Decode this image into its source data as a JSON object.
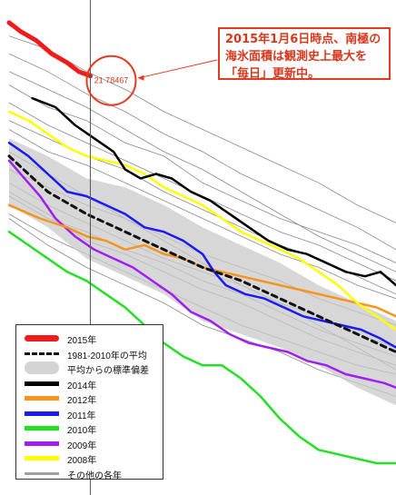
{
  "annotation": {
    "text": "2015年1月6日時点、南極の\n海氷面積は観測史上最大を\n「毎日」更新中。"
  },
  "value_label": "21 78467",
  "legend": [
    {
      "key": "s2015",
      "label": "2015年",
      "style": "solid",
      "color": "#ee1c1c"
    },
    {
      "key": "mean",
      "label": "1981-2010年の平均",
      "style": "dash",
      "color": "#111111"
    },
    {
      "key": "band",
      "label": "平均からの標準偏差",
      "style": "band",
      "color": "#d4d4d4"
    },
    {
      "key": "s2014",
      "label": "2014年",
      "style": "solid",
      "color": "#000000"
    },
    {
      "key": "s2012",
      "label": "2012年",
      "style": "solid",
      "color": "#f7941d"
    },
    {
      "key": "s2011",
      "label": "2011年",
      "style": "solid",
      "color": "#1c1cf0"
    },
    {
      "key": "s2010",
      "label": "2010年",
      "style": "solid",
      "color": "#22e022"
    },
    {
      "key": "s2009",
      "label": "2009年",
      "style": "solid",
      "color": "#a020f0"
    },
    {
      "key": "s2008",
      "label": "2008年",
      "style": "solid",
      "color": "#ffff00"
    },
    {
      "key": "other",
      "label": "その他の各年",
      "style": "solid",
      "color": "#a0a0a0"
    }
  ],
  "chart_data": {
    "type": "line",
    "title": "",
    "xlabel": "",
    "ylabel": "",
    "x_range": [
      0,
      100
    ],
    "y_range": [
      0,
      100
    ],
    "grid": false,
    "legend_position": "bottom-left",
    "marker_x": 21,
    "band": {
      "name": "平均からの標準偏差",
      "upper": [
        [
          0,
          73
        ],
        [
          10,
          69
        ],
        [
          20,
          64
        ],
        [
          30,
          62
        ],
        [
          40,
          58
        ],
        [
          50,
          53
        ],
        [
          60,
          49
        ],
        [
          70,
          45
        ],
        [
          80,
          40
        ],
        [
          90,
          36
        ],
        [
          100,
          32
        ]
      ],
      "lower": [
        [
          0,
          58
        ],
        [
          10,
          53
        ],
        [
          20,
          46
        ],
        [
          30,
          42
        ],
        [
          40,
          38
        ],
        [
          50,
          32
        ],
        [
          60,
          29
        ],
        [
          70,
          26
        ],
        [
          80,
          22
        ],
        [
          90,
          17
        ],
        [
          100,
          13
        ]
      ]
    },
    "series": [
      {
        "name": "2015年",
        "color": "#ee1c1c",
        "width": 5,
        "dash": false,
        "points": [
          [
            0,
            99
          ],
          [
            3,
            97
          ],
          [
            7,
            95
          ],
          [
            11,
            92
          ],
          [
            15,
            90
          ],
          [
            18,
            88
          ],
          [
            21,
            87
          ]
        ]
      },
      {
        "name": "1981-2010年の平均",
        "color": "#111111",
        "width": 3,
        "dash": true,
        "points": [
          [
            0,
            69
          ],
          [
            10,
            61
          ],
          [
            20,
            56
          ],
          [
            30,
            52
          ],
          [
            40,
            48
          ],
          [
            50,
            44
          ],
          [
            60,
            41
          ],
          [
            70,
            37
          ],
          [
            80,
            33
          ],
          [
            90,
            29
          ],
          [
            100,
            25
          ]
        ]
      },
      {
        "name": "2014年",
        "color": "#000000",
        "width": 2.5,
        "dash": false,
        "points": [
          [
            6,
            82
          ],
          [
            12,
            80
          ],
          [
            17,
            76
          ],
          [
            22,
            73
          ],
          [
            27,
            70
          ],
          [
            30,
            66
          ],
          [
            34,
            64
          ],
          [
            38,
            65
          ],
          [
            42,
            64
          ],
          [
            47,
            61
          ],
          [
            52,
            59
          ],
          [
            57,
            56
          ],
          [
            62,
            53
          ],
          [
            67,
            50
          ],
          [
            72,
            48
          ],
          [
            77,
            47
          ],
          [
            82,
            45
          ],
          [
            87,
            43
          ],
          [
            92,
            42
          ],
          [
            96,
            43
          ],
          [
            100,
            40
          ]
        ]
      },
      {
        "name": "2012年",
        "color": "#f7941d",
        "width": 2.5,
        "dash": false,
        "points": [
          [
            0,
            58
          ],
          [
            8,
            55
          ],
          [
            15,
            53
          ],
          [
            20,
            51
          ],
          [
            25,
            50
          ],
          [
            30,
            48
          ],
          [
            35,
            49
          ],
          [
            40,
            47
          ],
          [
            45,
            46
          ],
          [
            50,
            44
          ],
          [
            55,
            43
          ],
          [
            60,
            42
          ],
          [
            65,
            41
          ],
          [
            70,
            40
          ],
          [
            75,
            39
          ],
          [
            80,
            38
          ],
          [
            85,
            37
          ],
          [
            90,
            36
          ],
          [
            95,
            35
          ],
          [
            100,
            33
          ]
        ]
      },
      {
        "name": "2011年",
        "color": "#1c1cf0",
        "width": 2.5,
        "dash": false,
        "points": [
          [
            0,
            72
          ],
          [
            5,
            69
          ],
          [
            10,
            65
          ],
          [
            15,
            61
          ],
          [
            20,
            60
          ],
          [
            25,
            58
          ],
          [
            30,
            56
          ],
          [
            35,
            53
          ],
          [
            40,
            52
          ],
          [
            45,
            50
          ],
          [
            50,
            47
          ],
          [
            53,
            43
          ],
          [
            56,
            40
          ],
          [
            61,
            38
          ],
          [
            66,
            37
          ],
          [
            71,
            35
          ],
          [
            76,
            33
          ],
          [
            81,
            32
          ],
          [
            86,
            31
          ],
          [
            91,
            30
          ],
          [
            96,
            28
          ],
          [
            100,
            26
          ]
        ]
      },
      {
        "name": "2010年",
        "color": "#22e022",
        "width": 2.5,
        "dash": false,
        "points": [
          [
            0,
            52
          ],
          [
            5,
            49
          ],
          [
            10,
            46
          ],
          [
            15,
            43
          ],
          [
            20,
            41
          ],
          [
            25,
            38
          ],
          [
            30,
            35
          ],
          [
            35,
            31
          ],
          [
            40,
            27
          ],
          [
            45,
            24
          ],
          [
            50,
            22
          ],
          [
            55,
            22
          ],
          [
            60,
            19
          ],
          [
            65,
            15
          ],
          [
            70,
            10
          ],
          [
            75,
            6
          ],
          [
            80,
            3
          ],
          [
            85,
            2
          ],
          [
            90,
            1
          ],
          [
            95,
            0
          ],
          [
            100,
            0
          ]
        ]
      },
      {
        "name": "2009年",
        "color": "#a020f0",
        "width": 2.5,
        "dash": false,
        "points": [
          [
            0,
            68
          ],
          [
            4,
            64
          ],
          [
            8,
            60
          ],
          [
            12,
            55
          ],
          [
            17,
            51
          ],
          [
            22,
            48
          ],
          [
            27,
            46
          ],
          [
            32,
            44
          ],
          [
            37,
            41
          ],
          [
            42,
            38
          ],
          [
            47,
            34
          ],
          [
            52,
            32
          ],
          [
            57,
            29
          ],
          [
            62,
            27
          ],
          [
            67,
            26
          ],
          [
            72,
            25
          ],
          [
            77,
            23
          ],
          [
            82,
            22
          ],
          [
            87,
            20
          ],
          [
            92,
            19
          ],
          [
            97,
            18
          ],
          [
            100,
            17
          ]
        ]
      },
      {
        "name": "2008年",
        "color": "#ffff00",
        "width": 2.5,
        "dash": false,
        "points": [
          [
            0,
            79
          ],
          [
            5,
            77
          ],
          [
            10,
            74
          ],
          [
            15,
            71
          ],
          [
            20,
            69
          ],
          [
            25,
            68
          ],
          [
            30,
            67
          ],
          [
            35,
            65
          ],
          [
            40,
            62
          ],
          [
            45,
            60
          ],
          [
            50,
            58
          ],
          [
            55,
            55
          ],
          [
            60,
            52
          ],
          [
            65,
            50
          ],
          [
            70,
            48
          ],
          [
            75,
            46
          ],
          [
            80,
            43
          ],
          [
            85,
            40
          ],
          [
            90,
            36
          ],
          [
            95,
            33
          ],
          [
            100,
            30
          ]
        ]
      }
    ],
    "others": [
      [
        [
          0,
          88
        ],
        [
          10,
          84
        ],
        [
          20,
          80
        ],
        [
          30,
          75
        ],
        [
          40,
          70
        ],
        [
          50,
          66
        ],
        [
          60,
          61
        ],
        [
          70,
          56
        ],
        [
          80,
          51
        ],
        [
          90,
          47
        ],
        [
          100,
          43
        ]
      ],
      [
        [
          0,
          92
        ],
        [
          10,
          88
        ],
        [
          20,
          83
        ],
        [
          30,
          79
        ],
        [
          40,
          74
        ],
        [
          50,
          70
        ],
        [
          60,
          65
        ],
        [
          70,
          61
        ],
        [
          80,
          57
        ],
        [
          90,
          53
        ],
        [
          100,
          48
        ]
      ],
      [
        [
          0,
          96
        ],
        [
          10,
          93
        ],
        [
          20,
          88
        ],
        [
          30,
          84
        ],
        [
          40,
          79
        ],
        [
          50,
          75
        ],
        [
          60,
          71
        ],
        [
          70,
          67
        ],
        [
          80,
          63
        ],
        [
          90,
          58
        ],
        [
          100,
          54
        ]
      ],
      [
        [
          0,
          85
        ],
        [
          10,
          80
        ],
        [
          20,
          77
        ],
        [
          30,
          72
        ],
        [
          40,
          69
        ],
        [
          50,
          63
        ],
        [
          60,
          59
        ],
        [
          70,
          55
        ],
        [
          80,
          52
        ],
        [
          90,
          49
        ],
        [
          100,
          45
        ]
      ],
      [
        [
          0,
          77
        ],
        [
          10,
          73
        ],
        [
          20,
          69
        ],
        [
          30,
          66
        ],
        [
          40,
          61
        ],
        [
          50,
          57
        ],
        [
          60,
          53
        ],
        [
          70,
          49
        ],
        [
          80,
          46
        ],
        [
          90,
          42
        ],
        [
          100,
          38
        ]
      ],
      [
        [
          0,
          75
        ],
        [
          10,
          70
        ],
        [
          20,
          67
        ],
        [
          30,
          63
        ],
        [
          40,
          59
        ],
        [
          50,
          55
        ],
        [
          60,
          51
        ],
        [
          70,
          47
        ],
        [
          80,
          44
        ],
        [
          90,
          40
        ],
        [
          100,
          37
        ]
      ],
      [
        [
          0,
          66
        ],
        [
          10,
          62
        ],
        [
          20,
          58
        ],
        [
          30,
          55
        ],
        [
          40,
          51
        ],
        [
          50,
          47
        ],
        [
          60,
          44
        ],
        [
          70,
          41
        ],
        [
          80,
          37
        ],
        [
          90,
          34
        ],
        [
          100,
          31
        ]
      ],
      [
        [
          0,
          63
        ],
        [
          10,
          58
        ],
        [
          20,
          54
        ],
        [
          30,
          50
        ],
        [
          40,
          46
        ],
        [
          50,
          43
        ],
        [
          60,
          40
        ],
        [
          70,
          36
        ],
        [
          80,
          33
        ],
        [
          90,
          29
        ],
        [
          100,
          26
        ]
      ],
      [
        [
          0,
          61
        ],
        [
          10,
          56
        ],
        [
          20,
          50
        ],
        [
          30,
          47
        ],
        [
          40,
          43
        ],
        [
          50,
          39
        ],
        [
          60,
          36
        ],
        [
          70,
          32
        ],
        [
          80,
          28
        ],
        [
          90,
          25
        ],
        [
          100,
          22
        ]
      ],
      [
        [
          0,
          56
        ],
        [
          10,
          51
        ],
        [
          20,
          47
        ],
        [
          30,
          43
        ],
        [
          40,
          39
        ],
        [
          50,
          35
        ],
        [
          60,
          31
        ],
        [
          70,
          28
        ],
        [
          80,
          25
        ],
        [
          90,
          22
        ],
        [
          100,
          20
        ]
      ],
      [
        [
          0,
          55
        ],
        [
          10,
          49
        ],
        [
          20,
          44
        ],
        [
          30,
          40
        ],
        [
          40,
          36
        ],
        [
          50,
          31
        ],
        [
          60,
          28
        ],
        [
          70,
          25
        ],
        [
          80,
          21
        ],
        [
          90,
          18
        ],
        [
          100,
          15
        ]
      ],
      [
        [
          0,
          70
        ],
        [
          10,
          65
        ],
        [
          20,
          60
        ],
        [
          30,
          55
        ],
        [
          40,
          50
        ],
        [
          50,
          45
        ],
        [
          60,
          40
        ],
        [
          70,
          36
        ],
        [
          80,
          31
        ],
        [
          90,
          26
        ],
        [
          100,
          21
        ]
      ],
      [
        [
          0,
          81
        ],
        [
          10,
          76
        ],
        [
          20,
          72
        ],
        [
          30,
          68
        ],
        [
          40,
          64
        ],
        [
          50,
          60
        ],
        [
          60,
          56
        ],
        [
          70,
          52
        ],
        [
          80,
          49
        ],
        [
          90,
          45
        ],
        [
          100,
          41
        ]
      ],
      [
        [
          0,
          60
        ],
        [
          10,
          55
        ],
        [
          20,
          52
        ],
        [
          30,
          48
        ],
        [
          40,
          45
        ],
        [
          50,
          41
        ],
        [
          60,
          38
        ],
        [
          70,
          34
        ],
        [
          80,
          30
        ],
        [
          90,
          27
        ],
        [
          100,
          24
        ]
      ]
    ]
  }
}
